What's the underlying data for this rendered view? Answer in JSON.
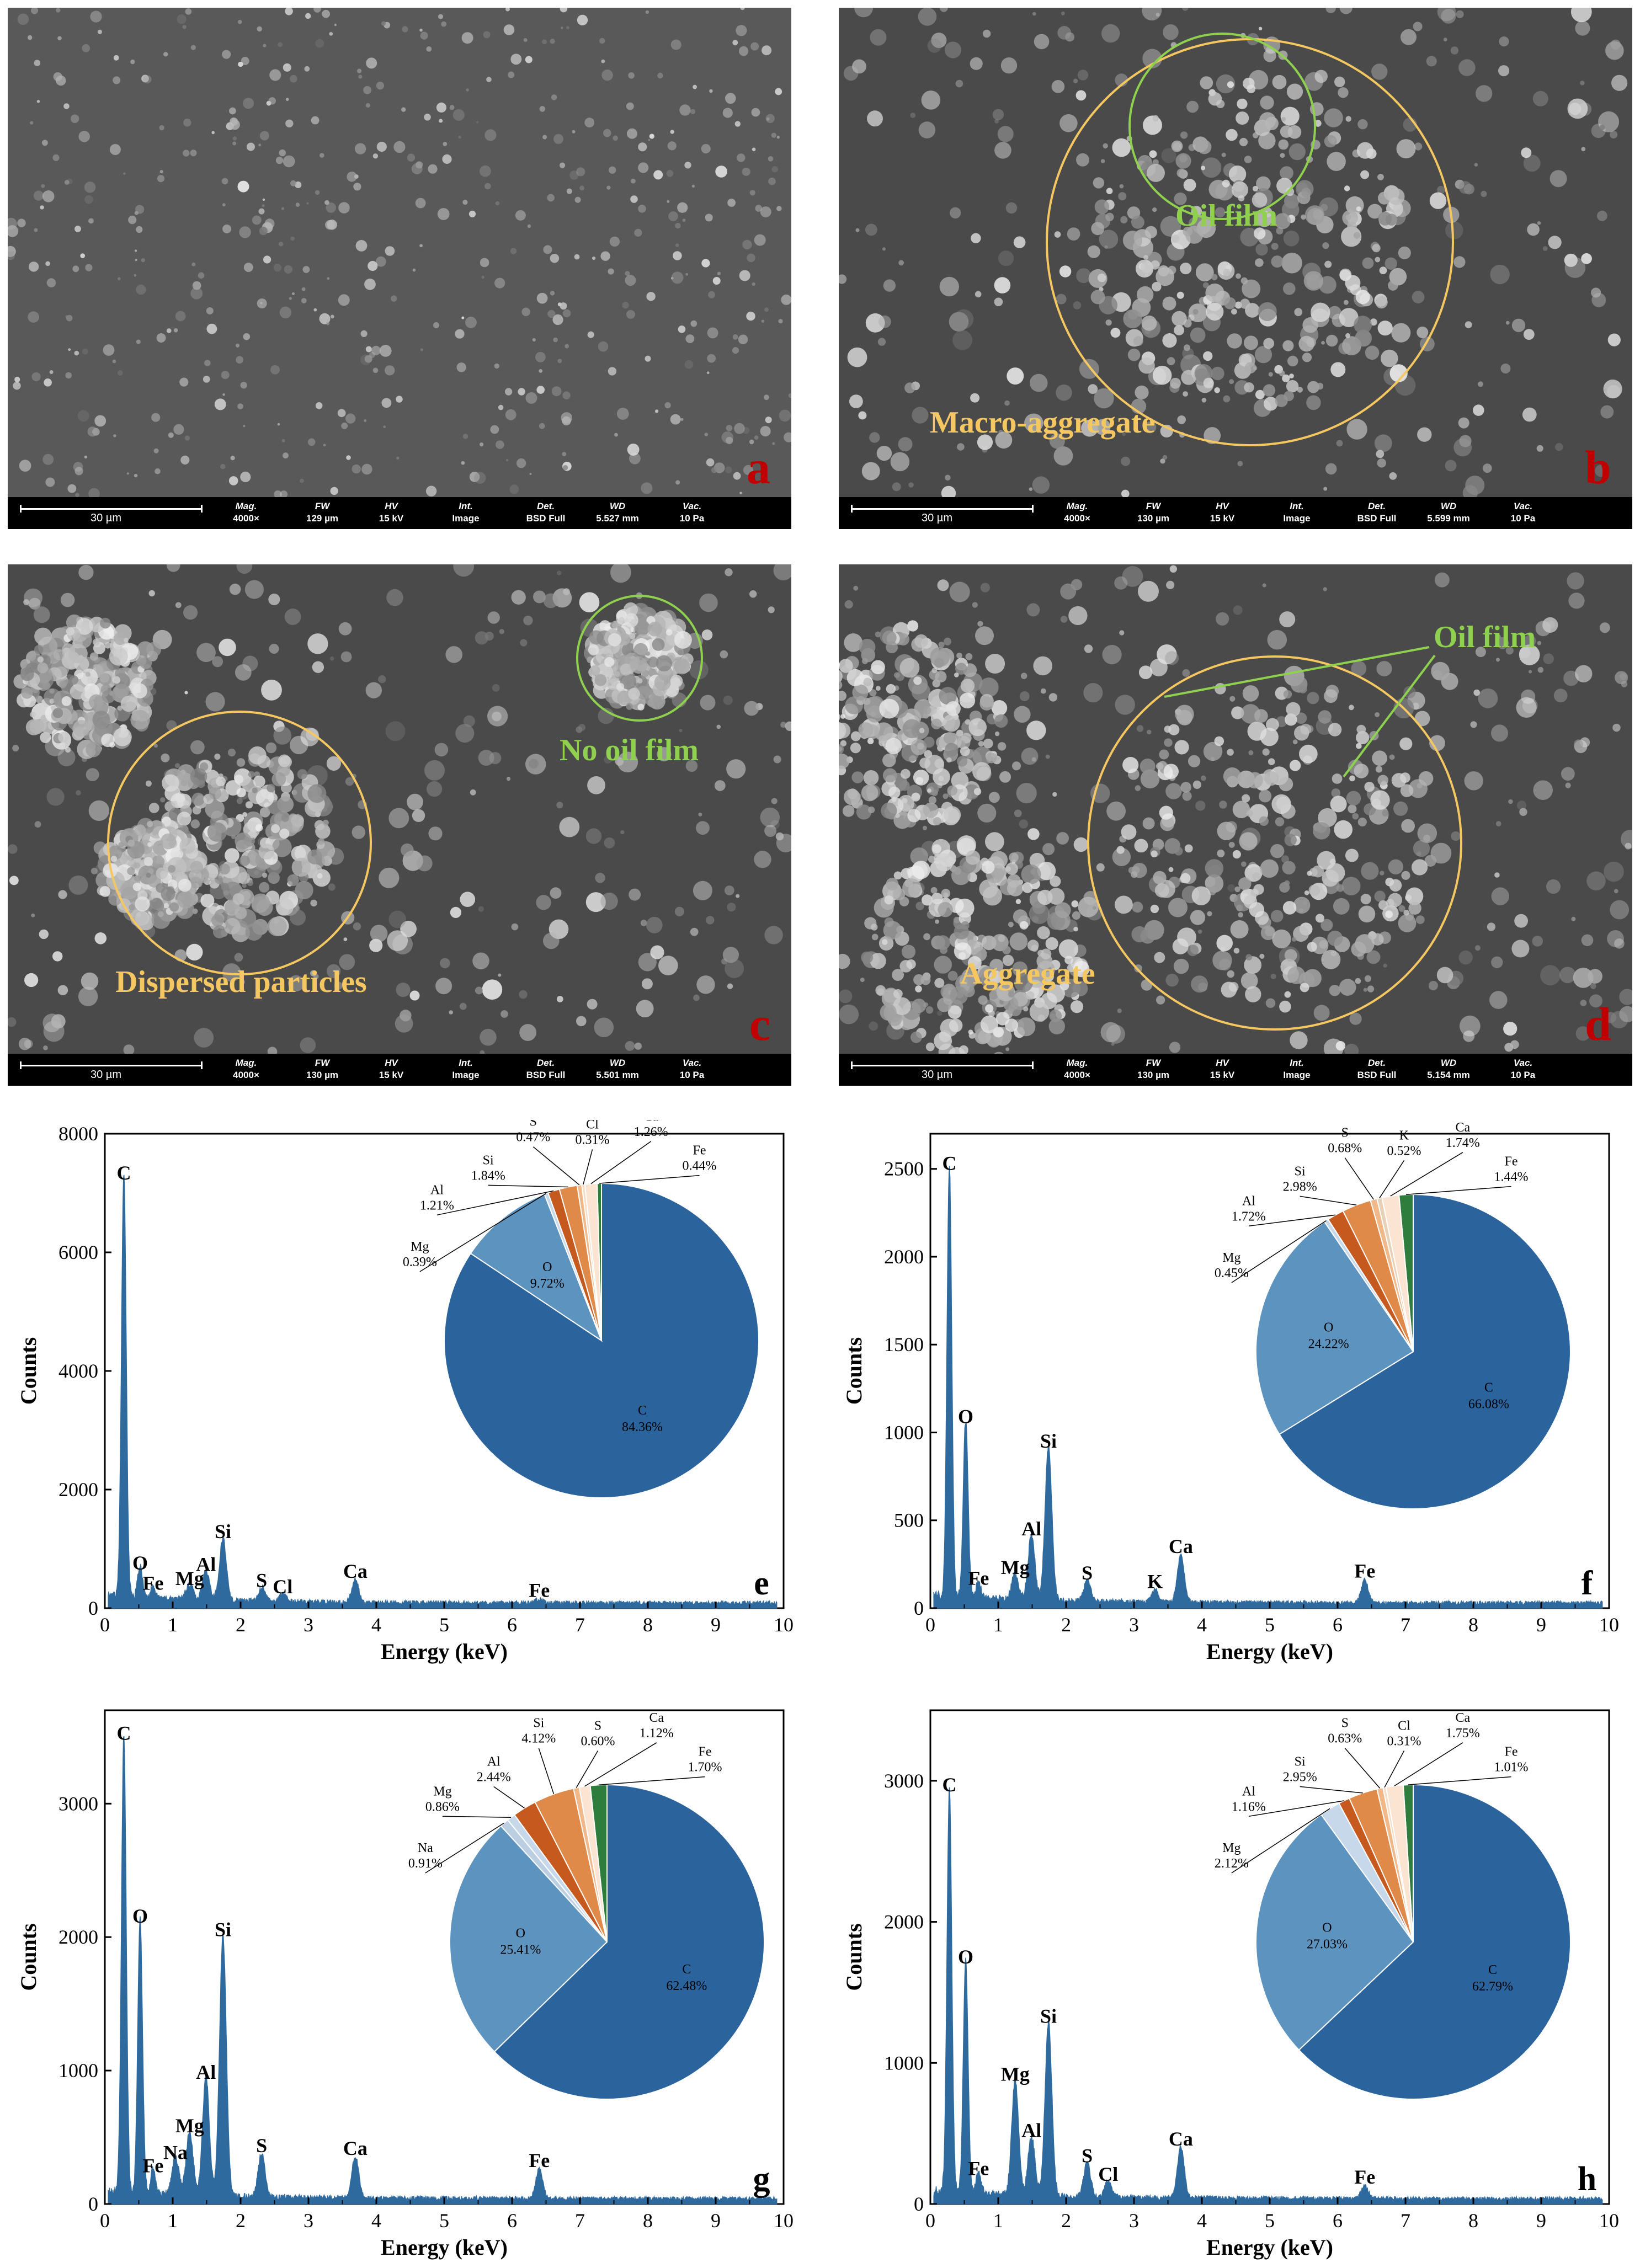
{
  "sem": {
    "scale_label": "30 µm",
    "meta_keys": [
      "Mag.",
      "FW",
      "HV",
      "Int.",
      "Det.",
      "WD",
      "Vac."
    ],
    "panels": [
      {
        "label": "a",
        "meta_values": [
          "4000×",
          "129 µm",
          "15 kV",
          "Image",
          "BSD Full",
          "5.527 mm",
          "10 Pa"
        ],
        "annotations": []
      },
      {
        "label": "b",
        "meta_values": [
          "4000×",
          "130 µm",
          "15 kV",
          "Image",
          "BSD Full",
          "5.599 mm",
          "10 Pa"
        ],
        "annotations": [
          "Oil film",
          "Macro-aggregate"
        ]
      },
      {
        "label": "c",
        "meta_values": [
          "4000×",
          "130 µm",
          "15 kV",
          "Image",
          "BSD Full",
          "5.501 mm",
          "10 Pa"
        ],
        "annotations": [
          "No oil film",
          "Dispersed particles"
        ]
      },
      {
        "label": "d",
        "meta_values": [
          "4000×",
          "130 µm",
          "15 kV",
          "Image",
          "BSD Full",
          "5.154 mm",
          "10 Pa"
        ],
        "annotations": [
          "Oil film",
          "Aggregate"
        ]
      }
    ],
    "colors": {
      "yellow_annotation": "#f5c760",
      "green_annotation": "#8fd14f",
      "panel_letter": "#c00000"
    }
  },
  "chart_data": [
    {
      "type": "area",
      "panel": "e",
      "xlabel": "Energy (keV)",
      "ylabel": "Counts",
      "xlim": [
        0,
        10
      ],
      "ylim": [
        0,
        8000
      ],
      "xticks": [
        0,
        1,
        2,
        3,
        4,
        5,
        6,
        7,
        8,
        9,
        10
      ],
      "yticks": [
        0,
        2000,
        4000,
        6000,
        8000
      ],
      "peaks": [
        {
          "label": "C",
          "x": 0.28,
          "y": 7100
        },
        {
          "label": "O",
          "x": 0.52,
          "y": 520
        },
        {
          "label": "Fe",
          "x": 0.71,
          "y": 180
        },
        {
          "label": "Mg",
          "x": 1.25,
          "y": 260
        },
        {
          "label": "Al",
          "x": 1.49,
          "y": 500
        },
        {
          "label": "Si",
          "x": 1.74,
          "y": 1050
        },
        {
          "label": "S",
          "x": 2.31,
          "y": 230
        },
        {
          "label": "Cl",
          "x": 2.62,
          "y": 120
        },
        {
          "label": "Ca",
          "x": 3.69,
          "y": 380
        },
        {
          "label": "Fe",
          "x": 6.4,
          "y": 60
        }
      ],
      "composition": [
        {
          "element": "C",
          "percent": 84.36
        },
        {
          "element": "O",
          "percent": 9.72
        },
        {
          "element": "Mg",
          "percent": 0.39
        },
        {
          "element": "Al",
          "percent": 1.21
        },
        {
          "element": "Si",
          "percent": 1.84
        },
        {
          "element": "S",
          "percent": 0.47
        },
        {
          "element": "Cl",
          "percent": 0.31
        },
        {
          "element": "Ca",
          "percent": 1.26
        },
        {
          "element": "Fe",
          "percent": 0.44
        }
      ]
    },
    {
      "type": "area",
      "panel": "f",
      "xlabel": "Energy (keV)",
      "ylabel": "Counts",
      "xlim": [
        0,
        10
      ],
      "ylim": [
        0,
        2700
      ],
      "xticks": [
        0,
        1,
        2,
        3,
        4,
        5,
        6,
        7,
        8,
        9,
        10
      ],
      "yticks": [
        0,
        500,
        1000,
        1500,
        2000,
        2500
      ],
      "peaks": [
        {
          "label": "C",
          "x": 0.28,
          "y": 2450
        },
        {
          "label": "O",
          "x": 0.52,
          "y": 1010
        },
        {
          "label": "Fe",
          "x": 0.71,
          "y": 90
        },
        {
          "label": "Mg",
          "x": 1.25,
          "y": 150
        },
        {
          "label": "Al",
          "x": 1.49,
          "y": 370
        },
        {
          "label": "Si",
          "x": 1.74,
          "y": 870
        },
        {
          "label": "S",
          "x": 2.31,
          "y": 120
        },
        {
          "label": "K",
          "x": 3.31,
          "y": 70
        },
        {
          "label": "Ca",
          "x": 3.69,
          "y": 270
        },
        {
          "label": "Fe",
          "x": 6.4,
          "y": 130
        }
      ],
      "composition": [
        {
          "element": "C",
          "percent": 66.08
        },
        {
          "element": "O",
          "percent": 24.22
        },
        {
          "element": "Mg",
          "percent": 0.45
        },
        {
          "element": "Al",
          "percent": 1.72
        },
        {
          "element": "Si",
          "percent": 2.98
        },
        {
          "element": "S",
          "percent": 0.68
        },
        {
          "element": "K",
          "percent": 0.52
        },
        {
          "element": "Ca",
          "percent": 1.74
        },
        {
          "element": "Fe",
          "percent": 1.44
        }
      ]
    },
    {
      "type": "area",
      "panel": "g",
      "xlabel": "Energy (keV)",
      "ylabel": "Counts",
      "xlim": [
        0,
        10
      ],
      "ylim": [
        0,
        3700
      ],
      "xticks": [
        0,
        1,
        2,
        3,
        4,
        5,
        6,
        7,
        8,
        9,
        10
      ],
      "yticks": [
        0,
        1000,
        2000,
        3000
      ],
      "peaks": [
        {
          "label": "C",
          "x": 0.28,
          "y": 3420
        },
        {
          "label": "O",
          "x": 0.52,
          "y": 2050
        },
        {
          "label": "Fe",
          "x": 0.71,
          "y": 180
        },
        {
          "label": "Na",
          "x": 1.04,
          "y": 280
        },
        {
          "label": "Mg",
          "x": 1.25,
          "y": 480
        },
        {
          "label": "Al",
          "x": 1.49,
          "y": 880
        },
        {
          "label": "Si",
          "x": 1.74,
          "y": 1950
        },
        {
          "label": "S",
          "x": 2.31,
          "y": 330
        },
        {
          "label": "Ca",
          "x": 3.69,
          "y": 310
        },
        {
          "label": "Fe",
          "x": 6.4,
          "y": 220
        }
      ],
      "composition": [
        {
          "element": "C",
          "percent": 62.48
        },
        {
          "element": "O",
          "percent": 25.41
        },
        {
          "element": "Na",
          "percent": 0.91
        },
        {
          "element": "Mg",
          "percent": 0.86
        },
        {
          "element": "Al",
          "percent": 2.44
        },
        {
          "element": "Si",
          "percent": 4.12
        },
        {
          "element": "S",
          "percent": 0.6
        },
        {
          "element": "Ca",
          "percent": 1.12
        },
        {
          "element": "Fe",
          "percent": 1.7
        }
      ]
    },
    {
      "type": "area",
      "panel": "h",
      "xlabel": "Energy (keV)",
      "ylabel": "Counts",
      "xlim": [
        0,
        10
      ],
      "ylim": [
        0,
        3500
      ],
      "xticks": [
        0,
        1,
        2,
        3,
        4,
        5,
        6,
        7,
        8,
        9,
        10
      ],
      "yticks": [
        0,
        1000,
        2000,
        3000
      ],
      "peaks": [
        {
          "label": "C",
          "x": 0.28,
          "y": 2870
        },
        {
          "label": "O",
          "x": 0.52,
          "y": 1650
        },
        {
          "label": "Fe",
          "x": 0.71,
          "y": 150
        },
        {
          "label": "Mg",
          "x": 1.25,
          "y": 820
        },
        {
          "label": "Al",
          "x": 1.49,
          "y": 420
        },
        {
          "label": "Si",
          "x": 1.74,
          "y": 1230
        },
        {
          "label": "S",
          "x": 2.31,
          "y": 240
        },
        {
          "label": "Cl",
          "x": 2.62,
          "y": 110
        },
        {
          "label": "Ca",
          "x": 3.69,
          "y": 360
        },
        {
          "label": "Fe",
          "x": 6.4,
          "y": 90
        }
      ],
      "composition": [
        {
          "element": "C",
          "percent": 62.79
        },
        {
          "element": "O",
          "percent": 27.03
        },
        {
          "element": "Mg",
          "percent": 2.12
        },
        {
          "element": "Al",
          "percent": 1.16
        },
        {
          "element": "Si",
          "percent": 2.95
        },
        {
          "element": "S",
          "percent": 0.63
        },
        {
          "element": "Cl",
          "percent": 0.31
        },
        {
          "element": "Ca",
          "percent": 1.75
        },
        {
          "element": "Fe",
          "percent": 1.01
        }
      ]
    }
  ],
  "colors": {
    "spectrum": "#2f6a9e",
    "pie": {
      "C": "#2b639c",
      "O": "#5d93bf",
      "Na": "#bccfe2",
      "Mg": "#c7d8ea",
      "K": "#e7d2b8",
      "Al": "#c65a1e",
      "Si": "#e08a4a",
      "S": "#f1b98a",
      "Cl": "#f7dcc4",
      "Ca": "#fbe5d2",
      "Fe": "#2e7d3c"
    },
    "panel_letter": "#000000"
  }
}
